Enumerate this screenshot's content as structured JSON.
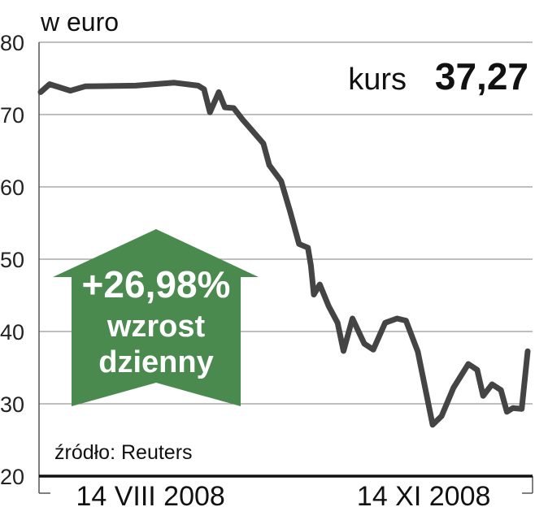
{
  "chart_data": {
    "type": "line",
    "unit_label": "w euro",
    "ylim": [
      20,
      80
    ],
    "yticks": [
      80,
      70,
      60,
      50,
      40,
      30,
      20
    ],
    "xlim": [
      "2008-07-08",
      "2008-12-19"
    ],
    "xtick_labels": [
      {
        "date": "2008-08-14",
        "label": "14 VIII 2008"
      },
      {
        "date": "2008-11-14",
        "label": "14 XI 2008"
      }
    ],
    "grid": true,
    "series": [
      {
        "color": "#444444",
        "points": [
          [
            "2008-07-08",
            73.1
          ],
          [
            "2008-07-11",
            74.2
          ],
          [
            "2008-07-18",
            73.3
          ],
          [
            "2008-07-23",
            73.9
          ],
          [
            "2008-08-09",
            74.0
          ],
          [
            "2008-08-22",
            74.4
          ],
          [
            "2008-08-30",
            74.0
          ],
          [
            "2008-09-01",
            73.5
          ],
          [
            "2008-09-03",
            70.3
          ],
          [
            "2008-09-06",
            73.1
          ],
          [
            "2008-09-08",
            71.0
          ],
          [
            "2008-09-11",
            70.9
          ],
          [
            "2008-09-14",
            69.3
          ],
          [
            "2008-09-17",
            67.9
          ],
          [
            "2008-09-21",
            66.0
          ],
          [
            "2008-09-23",
            63.0
          ],
          [
            "2008-09-27",
            60.8
          ],
          [
            "2008-09-30",
            56.6
          ],
          [
            "2008-10-03",
            52.1
          ],
          [
            "2008-10-06",
            51.6
          ],
          [
            "2008-10-07",
            49.1
          ],
          [
            "2008-10-08",
            45.1
          ],
          [
            "2008-10-10",
            46.5
          ],
          [
            "2008-10-13",
            43.5
          ],
          [
            "2008-10-16",
            41.2
          ],
          [
            "2008-10-18",
            37.3
          ],
          [
            "2008-10-21",
            41.8
          ],
          [
            "2008-10-25",
            38.3
          ],
          [
            "2008-10-28",
            37.5
          ],
          [
            "2008-11-01",
            41.2
          ],
          [
            "2008-11-05",
            41.8
          ],
          [
            "2008-11-08",
            41.5
          ],
          [
            "2008-11-12",
            37.2
          ],
          [
            "2008-11-17",
            27.1
          ],
          [
            "2008-11-20",
            28.3
          ],
          [
            "2008-11-24",
            32.2
          ],
          [
            "2008-11-29",
            35.5
          ],
          [
            "2008-12-02",
            34.7
          ],
          [
            "2008-12-04",
            31.1
          ],
          [
            "2008-12-07",
            32.7
          ],
          [
            "2008-12-10",
            31.9
          ],
          [
            "2008-12-12",
            28.9
          ],
          [
            "2008-12-14",
            29.4
          ],
          [
            "2008-12-17",
            29.3
          ],
          [
            "2008-12-19",
            37.27
          ]
        ]
      }
    ],
    "annotations": {
      "kurs_label": "kurs",
      "kurs_value": "37,27",
      "change_value": "+26,98%",
      "change_line1": "wzrost",
      "change_line2": "dzienny",
      "change_color": "#4a8a4f",
      "source": "źródło: Reuters"
    }
  }
}
